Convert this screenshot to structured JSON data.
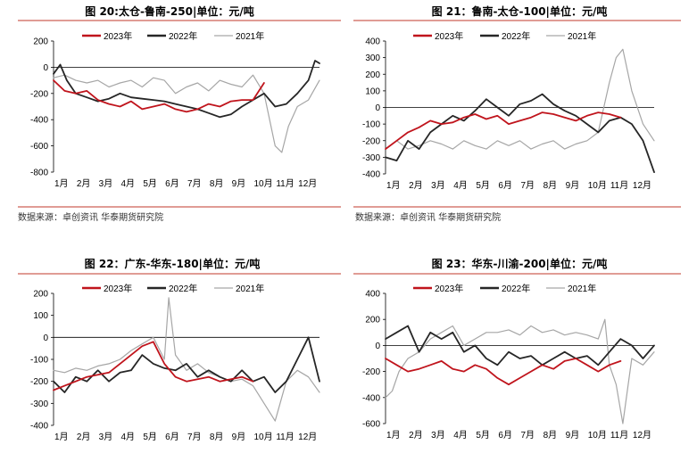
{
  "source": "数据来源：卓创资讯 华泰期货研究院",
  "legend": [
    "2023年",
    "2022年",
    "2021年"
  ],
  "colors": {
    "2023": "#c0141c",
    "2022": "#262626",
    "2021": "#a6a6a6",
    "rule": "#c0392b"
  },
  "chart_data": [
    {
      "type": "line",
      "title": "图 20:太仓-鲁南-250|单位：元/吨",
      "xticks": [
        "1月",
        "2月",
        "3月",
        "4月",
        "5月",
        "6月",
        "7月",
        "8月",
        "9月",
        "10月",
        "11月",
        "12月"
      ],
      "yticks": [
        200,
        0,
        -200,
        -400,
        -600,
        -800
      ],
      "ylim": [
        -800,
        200
      ],
      "series": [
        {
          "name": "2023年",
          "x": [
            0,
            0.5,
            1,
            1.5,
            2,
            2.5,
            3,
            3.5,
            4,
            4.5,
            5,
            5.5,
            6,
            6.5,
            7,
            7.5,
            8,
            8.5,
            9,
            9.5
          ],
          "values": [
            -100,
            -180,
            -200,
            -180,
            -250,
            -280,
            -300,
            -260,
            -320,
            -300,
            -280,
            -320,
            -340,
            -320,
            -280,
            -300,
            -260,
            -250,
            -250,
            -120
          ]
        },
        {
          "name": "2022年",
          "x": [
            0,
            0.3,
            0.6,
            1,
            1.5,
            2,
            2.5,
            3,
            3.5,
            4,
            4.5,
            5,
            5.5,
            6,
            6.5,
            7,
            7.5,
            8,
            8.5,
            9,
            9.5,
            10,
            10.5,
            11,
            11.5,
            11.8,
            12
          ],
          "values": [
            -50,
            20,
            -100,
            -200,
            -230,
            -260,
            -240,
            -200,
            -230,
            -240,
            -250,
            -260,
            -280,
            -300,
            -320,
            -350,
            -380,
            -360,
            -300,
            -250,
            -200,
            -300,
            -280,
            -200,
            -100,
            50,
            30
          ]
        },
        {
          "name": "2021年",
          "x": [
            0,
            0.5,
            1,
            1.5,
            2,
            2.5,
            3,
            3.5,
            4,
            4.5,
            5,
            5.5,
            6,
            6.5,
            7,
            7.5,
            8,
            8.5,
            9,
            9.5,
            10,
            10.3,
            10.6,
            11,
            11.5,
            12
          ],
          "values": [
            -80,
            -60,
            -100,
            -120,
            -100,
            -150,
            -120,
            -100,
            -150,
            -80,
            -100,
            -200,
            -150,
            -120,
            -180,
            -100,
            -130,
            -150,
            -60,
            -200,
            -600,
            -650,
            -450,
            -300,
            -250,
            -100
          ]
        }
      ]
    },
    {
      "type": "line",
      "title": "图 21：鲁南-太仓-100|单位：元/吨",
      "xticks": [
        "1月",
        "2月",
        "3月",
        "4月",
        "5月",
        "6月",
        "7月",
        "8月",
        "9月",
        "10月",
        "11月",
        "12月"
      ],
      "yticks": [
        400,
        300,
        200,
        100,
        0,
        -100,
        -200,
        -300,
        -400
      ],
      "ylim": [
        -400,
        400
      ],
      "series": [
        {
          "name": "2023年",
          "x": [
            0,
            0.5,
            1,
            1.5,
            2,
            2.5,
            3,
            3.5,
            4,
            4.5,
            5,
            5.5,
            6,
            6.5,
            7,
            7.5,
            8,
            8.5,
            9,
            9.5,
            10,
            10.5
          ],
          "values": [
            -250,
            -200,
            -150,
            -120,
            -80,
            -100,
            -90,
            -60,
            -40,
            -70,
            -50,
            -100,
            -80,
            -60,
            -30,
            -40,
            -60,
            -80,
            -50,
            -30,
            -40,
            -60
          ]
        },
        {
          "name": "2022年",
          "x": [
            0,
            0.5,
            1,
            1.5,
            2,
            2.5,
            3,
            3.5,
            4,
            4.5,
            5,
            5.5,
            6,
            6.5,
            7,
            7.5,
            8,
            8.5,
            9,
            9.5,
            10,
            10.5,
            11,
            11.5,
            12
          ],
          "values": [
            -300,
            -320,
            -200,
            -250,
            -150,
            -100,
            -50,
            -80,
            -20,
            50,
            0,
            -50,
            20,
            40,
            80,
            20,
            -20,
            -50,
            -100,
            -150,
            -80,
            -60,
            -100,
            -200,
            -390
          ]
        },
        {
          "name": "2021年",
          "x": [
            0,
            0.5,
            1,
            1.5,
            2,
            2.5,
            3,
            3.5,
            4,
            4.5,
            5,
            5.5,
            6,
            6.5,
            7,
            7.5,
            8,
            8.5,
            9,
            9.5,
            10,
            10.3,
            10.6,
            11,
            11.5,
            12
          ],
          "values": [
            -250,
            -200,
            -250,
            -230,
            -200,
            -220,
            -250,
            -200,
            -230,
            -250,
            -200,
            -230,
            -200,
            -250,
            -220,
            -200,
            -250,
            -220,
            -200,
            -150,
            150,
            300,
            350,
            100,
            -100,
            -200
          ]
        }
      ]
    },
    {
      "type": "line",
      "title": "图 22：广东-华东-180|单位：元/吨",
      "xticks": [
        "1月",
        "2月",
        "3月",
        "4月",
        "5月",
        "6月",
        "7月",
        "8月",
        "9月",
        "10月",
        "11月",
        "12月"
      ],
      "yticks": [
        200,
        100,
        0,
        -100,
        -200,
        -300,
        -400
      ],
      "ylim": [
        -400,
        200
      ],
      "series": [
        {
          "name": "2023年",
          "x": [
            0,
            0.5,
            1,
            1.5,
            2,
            2.5,
            3,
            3.5,
            4,
            4.5,
            5,
            5.5,
            6,
            6.5,
            7,
            7.5,
            8,
            8.5,
            9
          ],
          "values": [
            -240,
            -220,
            -200,
            -180,
            -170,
            -160,
            -120,
            -80,
            -40,
            -20,
            -120,
            -180,
            -200,
            -190,
            -180,
            -200,
            -190,
            -180,
            -200
          ]
        },
        {
          "name": "2022年",
          "x": [
            0,
            0.5,
            1,
            1.5,
            2,
            2.5,
            3,
            3.5,
            4,
            4.5,
            5,
            5.5,
            6,
            6.5,
            7,
            7.5,
            8,
            8.5,
            9,
            9.5,
            10,
            10.5,
            11,
            11.5,
            12
          ],
          "values": [
            -200,
            -250,
            -180,
            -200,
            -150,
            -200,
            -160,
            -150,
            -80,
            -120,
            -140,
            -150,
            -120,
            -180,
            -150,
            -180,
            -200,
            -150,
            -200,
            -180,
            -250,
            -200,
            -100,
            0,
            -200
          ]
        },
        {
          "name": "2021年",
          "x": [
            0,
            0.5,
            1,
            1.5,
            2,
            2.5,
            3,
            3.5,
            4,
            4.5,
            5,
            5.2,
            5.5,
            6,
            6.5,
            7,
            7.5,
            8,
            8.5,
            9,
            9.5,
            10,
            10.5,
            11,
            11.5,
            12
          ],
          "values": [
            -150,
            -160,
            -140,
            -150,
            -130,
            -120,
            -100,
            -60,
            -30,
            0,
            -100,
            180,
            -80,
            -150,
            -120,
            -160,
            -180,
            -200,
            -190,
            -220,
            -300,
            -380,
            -200,
            -150,
            -180,
            -250
          ]
        }
      ]
    },
    {
      "type": "line",
      "title": "图 23：华东-川渝-200|单位：元/吨",
      "xticks": [
        "1月",
        "2月",
        "3月",
        "4月",
        "5月",
        "6月",
        "7月",
        "8月",
        "9月",
        "10月",
        "11月",
        "12月"
      ],
      "yticks": [
        400,
        200,
        0,
        -200,
        -400,
        -600
      ],
      "ylim": [
        -600,
        400
      ],
      "series": [
        {
          "name": "2023年",
          "x": [
            0,
            0.5,
            1,
            1.5,
            2,
            2.5,
            3,
            3.5,
            4,
            4.5,
            5,
            5.5,
            6,
            6.5,
            7,
            7.5,
            8,
            8.5,
            9,
            9.5,
            10,
            10.5
          ],
          "values": [
            -100,
            -150,
            -200,
            -180,
            -150,
            -120,
            -180,
            -200,
            -150,
            -180,
            -250,
            -300,
            -250,
            -200,
            -150,
            -180,
            -120,
            -100,
            -150,
            -200,
            -150,
            -120
          ]
        },
        {
          "name": "2022年",
          "x": [
            0,
            0.5,
            1,
            1.5,
            2,
            2.5,
            3,
            3.5,
            4,
            4.5,
            5,
            5.5,
            6,
            6.5,
            7,
            7.5,
            8,
            8.5,
            9,
            9.5,
            10,
            10.5,
            11,
            11.5,
            12
          ],
          "values": [
            50,
            100,
            150,
            -50,
            100,
            50,
            100,
            -50,
            0,
            -100,
            -150,
            -50,
            -100,
            -80,
            -150,
            -100,
            -50,
            -100,
            -80,
            -150,
            -50,
            50,
            0,
            -100,
            0
          ]
        },
        {
          "name": "2021年",
          "x": [
            0,
            0.3,
            0.6,
            1,
            1.5,
            2,
            2.5,
            3,
            3.5,
            4,
            4.5,
            5,
            5.5,
            6,
            6.5,
            7,
            7.5,
            8,
            8.5,
            9,
            9.5,
            9.8,
            10,
            10.3,
            10.6,
            11,
            11.5,
            12
          ],
          "values": [
            -400,
            -350,
            -200,
            -100,
            -50,
            50,
            100,
            150,
            0,
            50,
            100,
            100,
            120,
            80,
            150,
            100,
            120,
            80,
            100,
            80,
            50,
            200,
            -150,
            -300,
            -600,
            -100,
            -150,
            -50
          ]
        }
      ]
    }
  ]
}
